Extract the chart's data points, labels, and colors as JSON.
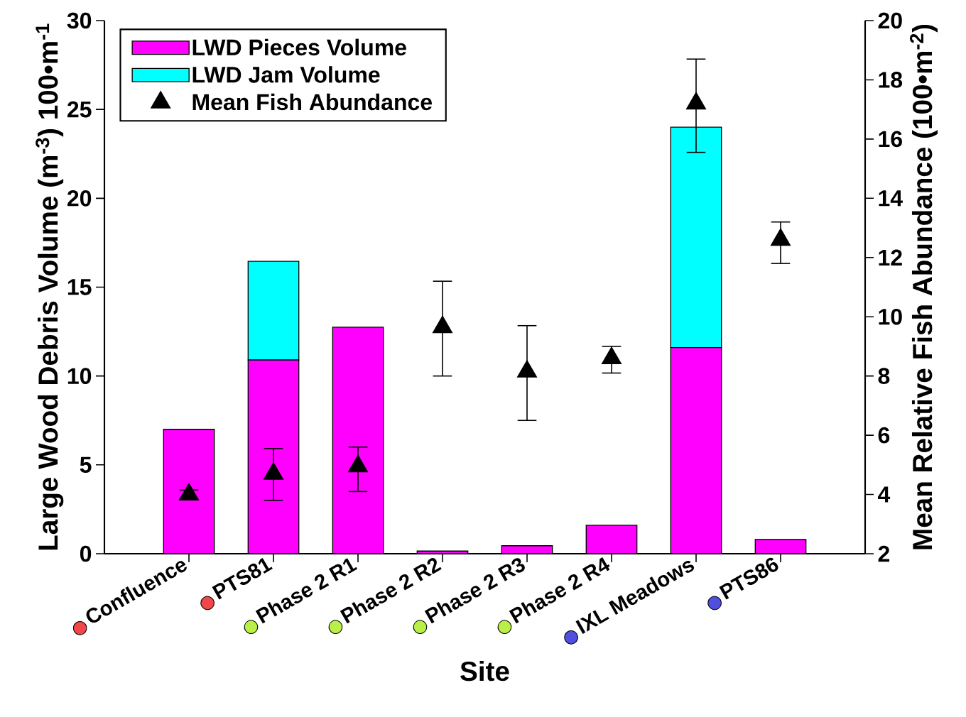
{
  "chart_data": {
    "type": "bar",
    "stacked": true,
    "xlabel": "Site",
    "ylabel": "Large Wood Debris Volume (m$^{-3}$) 100•m$^{-1}$",
    "y2label": "Mean Relative Fish Abundance (100•m$^{-2}$)",
    "categories": [
      "Confluence",
      "PTS81",
      "Phase 2 R1",
      "Phase 2 R2",
      "Phase 2 R3",
      "Phase 2 R4",
      "IXL Meadows",
      "PTS86"
    ],
    "series": [
      {
        "name": "LWD Pieces Volume",
        "color": "#ff00ff",
        "values": [
          7.0,
          10.9,
          12.75,
          0.15,
          0.45,
          1.6,
          11.6,
          0.8
        ]
      },
      {
        "name": "LWD Jam Volume",
        "color": "#00ffff",
        "values": [
          null,
          5.55,
          null,
          null,
          null,
          null,
          12.4,
          null
        ]
      },
      {
        "name": "Mean Fish Abundance",
        "type": "scatter",
        "axis": "y2",
        "marker": "triangle",
        "color": "#000000",
        "values": [
          4.0,
          4.7,
          4.95,
          9.65,
          8.15,
          8.6,
          17.2,
          12.6
        ],
        "errors": [
          [
            3.85,
            4.15
          ],
          [
            3.8,
            5.55
          ],
          [
            4.1,
            5.6
          ],
          [
            8.0,
            11.2
          ],
          [
            6.5,
            9.7
          ],
          [
            8.1,
            9.0
          ],
          [
            15.55,
            18.7
          ],
          [
            11.8,
            13.2
          ]
        ]
      }
    ],
    "ylim": [
      0,
      30
    ],
    "yticks": [
      0,
      5,
      10,
      15,
      20,
      25,
      30
    ],
    "y2lim": [
      2,
      20
    ],
    "y2ticks": [
      2,
      4,
      6,
      8,
      10,
      12,
      14,
      16,
      18,
      20
    ],
    "legend": "top left",
    "grid": false
  }
}
